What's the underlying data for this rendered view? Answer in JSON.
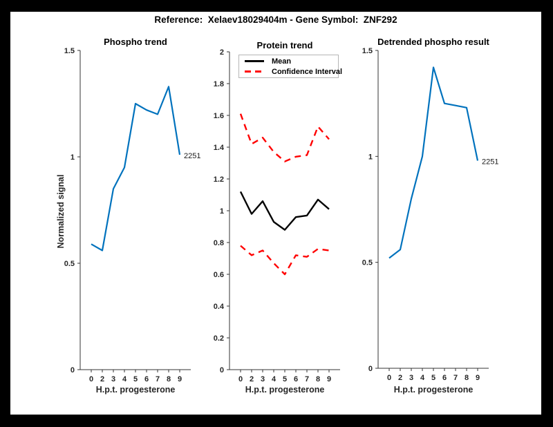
{
  "header": {
    "title": "Reference:  Xelaev18029404m - Gene Symbol:  ZNF292"
  },
  "colors": {
    "figure_background": "#ffffff",
    "frame_border": "#000000",
    "line_blue": "#0072bd",
    "line_black": "#000000",
    "line_red": "#ff0000",
    "axis": "#333333",
    "tick_text": "#262626",
    "legend_border": "#b5b5b5"
  },
  "chart_data": [
    {
      "type": "line",
      "title": "Phospho trend",
      "xlabel": "H.p.t. progesterone",
      "ylabel": "Normalized signal",
      "categories": [
        "0",
        "2",
        "3",
        "4",
        "5",
        "6",
        "7",
        "8",
        "9"
      ],
      "ylim": [
        0,
        1.5
      ],
      "yticks": [
        0,
        0.5,
        1,
        1.5
      ],
      "ytick_labels": [
        "0",
        "0.5",
        "1",
        "1.5"
      ],
      "grid": false,
      "legend": null,
      "series": [
        {
          "name": "phospho-signal",
          "color": "#0072bd",
          "style": "solid",
          "width": 2.2,
          "values": [
            0.59,
            0.56,
            0.85,
            0.95,
            1.25,
            1.22,
            1.2,
            1.33,
            1.01
          ]
        }
      ],
      "end_label": "2251"
    },
    {
      "type": "line",
      "title": "Protein trend",
      "xlabel": "H.p.t. progesterone",
      "ylabel": "",
      "categories": [
        "0",
        "2",
        "3",
        "4",
        "5",
        "6",
        "7",
        "8",
        "9"
      ],
      "ylim": [
        0,
        2
      ],
      "yticks": [
        0,
        0.2,
        0.4,
        0.6,
        0.8,
        1,
        1.2,
        1.4,
        1.6,
        1.8,
        2
      ],
      "ytick_labels": [
        "0",
        "0.2",
        "0.4",
        "0.6",
        "0.8",
        "1",
        "1.2",
        "1.4",
        "1.6",
        "1.8",
        "2"
      ],
      "grid": false,
      "legend": {
        "position": "top-left",
        "entries": [
          {
            "label": "Mean",
            "color": "#000000",
            "style": "solid"
          },
          {
            "label": "Confidence Interval",
            "color": "#ff0000",
            "style": "dashed"
          }
        ]
      },
      "series": [
        {
          "name": "mean",
          "color": "#000000",
          "style": "solid",
          "width": 2.4,
          "values": [
            1.12,
            0.98,
            1.06,
            0.93,
            0.88,
            0.96,
            0.97,
            1.07,
            1.01
          ]
        },
        {
          "name": "ci-upper",
          "color": "#ff0000",
          "style": "dashed",
          "width": 2.4,
          "values": [
            1.61,
            1.42,
            1.46,
            1.37,
            1.31,
            1.34,
            1.35,
            1.53,
            1.45
          ]
        },
        {
          "name": "ci-lower",
          "color": "#ff0000",
          "style": "dashed",
          "width": 2.4,
          "values": [
            0.78,
            0.72,
            0.75,
            0.67,
            0.6,
            0.72,
            0.71,
            0.76,
            0.75
          ]
        }
      ],
      "end_label": null
    },
    {
      "type": "line",
      "title": "Detrended phospho result",
      "xlabel": "H.p.t. progesterone",
      "ylabel": "",
      "categories": [
        "0",
        "2",
        "3",
        "4",
        "5",
        "6",
        "7",
        "8",
        "9"
      ],
      "ylim": [
        0,
        1.5
      ],
      "yticks": [
        0,
        0.5,
        1,
        1.5
      ],
      "ytick_labels": [
        "0",
        "0.5",
        "1",
        "1.5"
      ],
      "grid": false,
      "legend": null,
      "series": [
        {
          "name": "detrended-phospho-signal",
          "color": "#0072bd",
          "style": "solid",
          "width": 2.2,
          "values": [
            0.52,
            0.56,
            0.8,
            1.0,
            1.42,
            1.25,
            1.24,
            1.23,
            0.98
          ]
        }
      ],
      "end_label": "2251"
    }
  ]
}
